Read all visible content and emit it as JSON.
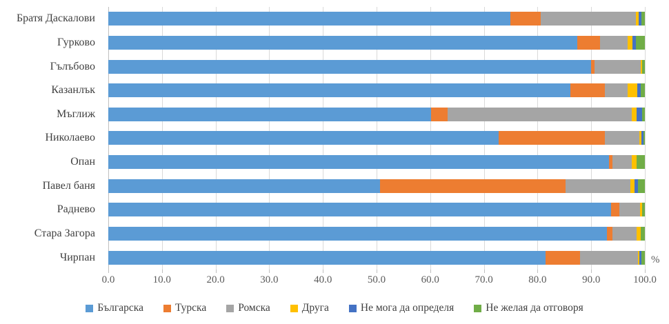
{
  "chart_data": {
    "type": "bar",
    "orientation": "horizontal",
    "stacked": true,
    "title": "",
    "xlabel": "%",
    "ylabel": "",
    "xlim": [
      0,
      100
    ],
    "grid": true,
    "legend_position": "bottom",
    "x_tick_labels": [
      "0.0",
      "10.0",
      "20.0",
      "30.0",
      "40.0",
      "50.0",
      "60.0",
      "70.0",
      "80.0",
      "90.0",
      "100.0"
    ],
    "x_tick_values": [
      0,
      10,
      20,
      30,
      40,
      50,
      60,
      70,
      80,
      90,
      100
    ],
    "categories": [
      "Братя Даскалови",
      "Гурково",
      "Гълъбово",
      "Казанлък",
      "Мъглиж",
      "Николаево",
      "Опан",
      "Павел баня",
      "Раднево",
      "Стара Загора",
      "Чирпан"
    ],
    "series": [
      {
        "name": "Българска",
        "color": "#5B9BD5",
        "values": [
          74.9,
          87.4,
          90.0,
          86.1,
          60.2,
          72.8,
          93.3,
          50.7,
          93.7,
          92.9,
          81.5
        ]
      },
      {
        "name": "Турска",
        "color": "#ED7D31",
        "values": [
          5.7,
          4.3,
          0.6,
          6.5,
          3.0,
          19.8,
          0.6,
          34.5,
          1.5,
          1.0,
          6.4
        ]
      },
      {
        "name": "Ромска",
        "color": "#A5A5A5",
        "values": [
          17.7,
          5.1,
          8.6,
          4.2,
          34.4,
          6.4,
          3.7,
          12.1,
          3.9,
          4.5,
          10.8
        ]
      },
      {
        "name": "Друга",
        "color": "#FFC000",
        "values": [
          0.6,
          0.9,
          0.3,
          1.8,
          0.9,
          0.4,
          0.9,
          0.8,
          0.4,
          0.8,
          0.3
        ]
      },
      {
        "name": "Не мога да определя",
        "color": "#4472C4",
        "values": [
          0.5,
          0.6,
          0.0,
          0.6,
          1.0,
          0.4,
          0.0,
          0.6,
          0.0,
          0.0,
          0.4
        ]
      },
      {
        "name": "Не желая да отговоря",
        "color": "#70AD47",
        "values": [
          0.6,
          1.7,
          0.5,
          0.8,
          0.5,
          0.2,
          1.5,
          1.3,
          0.5,
          0.8,
          0.6
        ]
      }
    ]
  },
  "axis": {
    "unit_label": "%"
  },
  "style": {
    "gridline_color": "#d9d9d9",
    "axis_color": "#bfbfbf",
    "category_text_color": "#3f3f3f",
    "tick_text_color": "#595959"
  }
}
